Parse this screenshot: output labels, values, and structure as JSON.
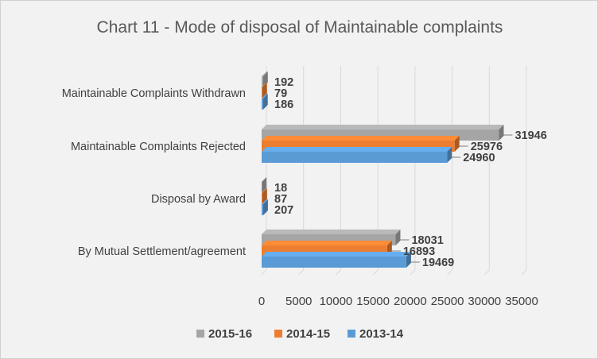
{
  "chart_data": {
    "type": "bar",
    "orientation": "horizontal",
    "style": "3d-clustered",
    "title": "Chart 11 - Mode of disposal of Maintainable complaints",
    "categories": [
      "By Mutual Settlement/agreement",
      "Disposal by Award",
      "Maintainable Complaints Rejected",
      "Maintainable Complaints Withdrawn"
    ],
    "series": [
      {
        "name": "2013-14",
        "color": "#5b9bd5",
        "values": [
          19469,
          207,
          24960,
          186
        ]
      },
      {
        "name": "2014-15",
        "color": "#ed7d31",
        "values": [
          16893,
          87,
          25976,
          79
        ]
      },
      {
        "name": "2015-16",
        "color": "#a5a5a5",
        "values": [
          18031,
          18,
          31946,
          192
        ]
      }
    ],
    "xticks": [
      "0",
      "5000",
      "10000",
      "15000",
      "20000",
      "25000",
      "30000",
      "35000"
    ],
    "xlim": [
      0,
      35000
    ],
    "grid": true,
    "legend_position": "bottom",
    "legend_order": [
      "2015-16",
      "2014-15",
      "2013-14"
    ]
  }
}
